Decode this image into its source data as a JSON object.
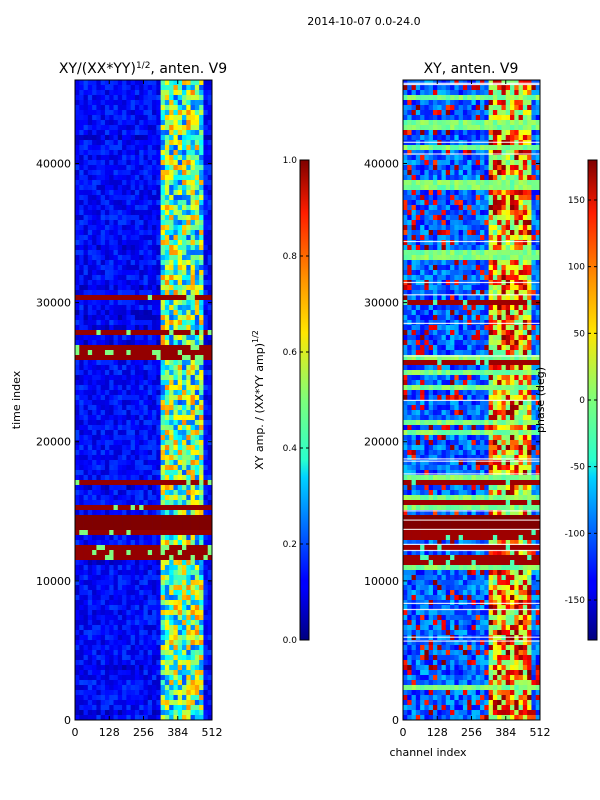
{
  "chart_data": {
    "suptitle": "2014-10-07 0.0-24.0",
    "x_label": "channel index",
    "y_label": "time index",
    "panels": [
      {
        "title_main": "XY/(XX*YY)",
        "title_sup": "1/2",
        "title_tail": ", anten. V9",
        "type": "heatmap",
        "xlim": [
          0,
          512
        ],
        "ylim": [
          0,
          46000
        ],
        "xticks": [
          0,
          128,
          256,
          384,
          512
        ],
        "yticks": [
          0,
          10000,
          20000,
          30000,
          40000
        ],
        "colorbar": {
          "label": "XY amp. / (XX*YY amp)",
          "label_sup": "1/2",
          "range": [
            0.0,
            1.0
          ],
          "ticks": [
            "0.0",
            "0.2",
            "0.4",
            "0.6",
            "0.8",
            "1.0"
          ],
          "colormap": "jet"
        }
      },
      {
        "title": "XY, anten. V9",
        "type": "heatmap",
        "xlim": [
          0,
          512
        ],
        "ylim": [
          0,
          46000
        ],
        "xticks": [
          0,
          128,
          256,
          384,
          512
        ],
        "yticks": [
          0,
          10000,
          20000,
          30000,
          40000
        ],
        "colorbar": {
          "label": "phase (deg)",
          "range": [
            -180,
            180
          ],
          "ticks": [
            -150,
            -100,
            -50,
            0,
            50,
            100,
            150
          ],
          "colormap": "jet"
        }
      }
    ]
  }
}
